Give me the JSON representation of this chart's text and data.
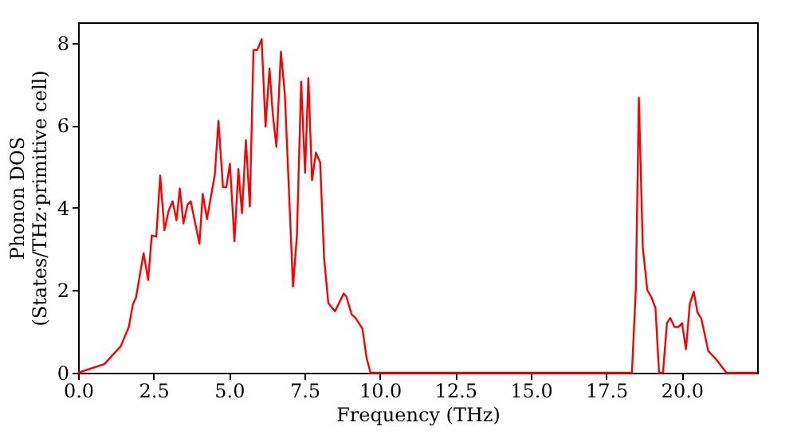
{
  "chart_data": {
    "type": "line",
    "xlabel": "Frequency (THz)",
    "ylabel": "Phonon DOS\n(States/THz·primitive cell)",
    "xlim": [
      0,
      22.5
    ],
    "ylim": [
      0,
      8.5
    ],
    "xticks": [
      {
        "value": 0,
        "label": "0.0"
      },
      {
        "value": 2.5,
        "label": "2.5"
      },
      {
        "value": 5,
        "label": "5.0"
      },
      {
        "value": 7.5,
        "label": "7.5"
      },
      {
        "value": 10,
        "label": "10.0"
      },
      {
        "value": 12.5,
        "label": "12.5"
      },
      {
        "value": 15,
        "label": "15.0"
      },
      {
        "value": 17.5,
        "label": "17.5"
      },
      {
        "value": 20,
        "label": "20.0"
      }
    ],
    "yticks": [
      0,
      2,
      4,
      6,
      8
    ],
    "grid": false,
    "marker": "none",
    "line_style": "solid",
    "series": [
      {
        "color": "#ff0000",
        "x": [
          0,
          0.87,
          1.41,
          1.68,
          1.81,
          1.92,
          2.17,
          2.32,
          2.44,
          2.59,
          2.72,
          2.86,
          3.0,
          3.13,
          3.26,
          3.37,
          3.49,
          3.62,
          3.73,
          4.02,
          4.13,
          4.27,
          4.53,
          4.65,
          4.8,
          4.91,
          5.03,
          5.18,
          5.31,
          5.43,
          5.56,
          5.69,
          5.81,
          5.94,
          6.08,
          6.21,
          6.34,
          6.45,
          6.57,
          6.72,
          6.85,
          7.12,
          7.25,
          7.39,
          7.52,
          7.63,
          7.75,
          7.88,
          8.02,
          8.15,
          8.29,
          8.51,
          8.8,
          8.89,
          9.06,
          9.2,
          9.42,
          9.56,
          9.69,
          18.35,
          18.48,
          18.58,
          18.71,
          18.86,
          18.99,
          19.13,
          19.25,
          19.38,
          19.51,
          19.62,
          19.76,
          19.89,
          20.01,
          20.14,
          20.27,
          20.4,
          20.52,
          20.65,
          20.88,
          21.16,
          21.48,
          22.5
        ],
        "values": [
          0,
          0.21,
          0.64,
          1.11,
          1.65,
          1.83,
          2.9,
          2.25,
          3.33,
          3.3,
          4.78,
          3.46,
          3.93,
          4.16,
          3.7,
          4.47,
          3.62,
          4.07,
          4.16,
          3.13,
          4.34,
          3.73,
          4.81,
          6.11,
          4.5,
          4.5,
          5.07,
          3.19,
          4.94,
          3.87,
          5.64,
          4.03,
          7.83,
          7.83,
          8.09,
          5.97,
          7.38,
          6.28,
          5.48,
          7.79,
          6.75,
          2.09,
          3.33,
          7.06,
          4.85,
          7.15,
          4.67,
          5.34,
          5.1,
          2.79,
          1.69,
          1.49,
          1.92,
          1.85,
          1.42,
          1.32,
          1.07,
          0.35,
          0,
          0,
          2.04,
          6.67,
          3.04,
          2.0,
          1.84,
          1.57,
          0,
          0,
          1.2,
          1.33,
          1.11,
          1.11,
          1.2,
          0.57,
          1.68,
          1.97,
          1.47,
          1.31,
          0.53,
          0.31,
          0,
          0
        ]
      }
    ]
  }
}
